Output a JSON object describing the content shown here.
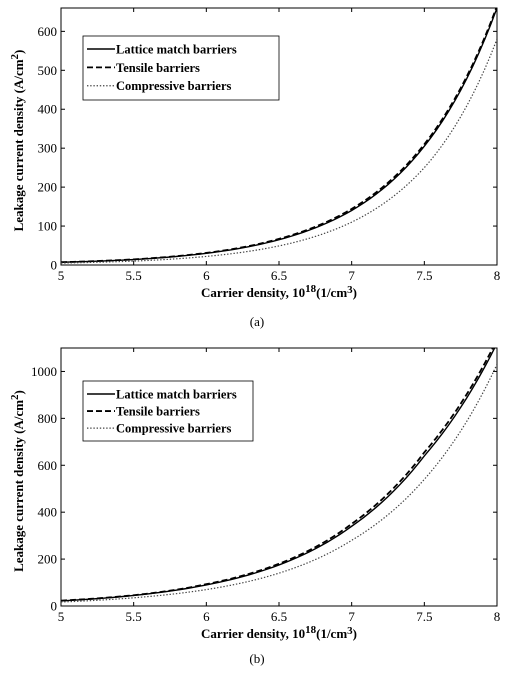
{
  "chart_data": [
    {
      "panel_label": "(a)",
      "type": "line",
      "xlabel": "Carrier density, 10",
      "xlabel_sup": "18",
      "xlabel_tail": "(1/cm",
      "xlabel_sup2": "3",
      "xlabel_end": ")",
      "ylabel": "Leakage current density (A/cm",
      "ylabel_sup": "2",
      "ylabel_end": ")",
      "xlim": [
        5,
        8
      ],
      "ylim": [
        0,
        660
      ],
      "xticks": [
        5,
        5.5,
        6,
        6.5,
        7,
        7.5,
        8
      ],
      "xtick_labels": [
        "5",
        "5.5",
        "6",
        "6.5",
        "7",
        "7.5",
        "8"
      ],
      "yticks": [
        0,
        100,
        200,
        300,
        400,
        500,
        600
      ],
      "ytick_labels": [
        "0",
        "100",
        "200",
        "300",
        "400",
        "500",
        "600"
      ],
      "legend_position": "top-left",
      "series": [
        {
          "name": "Lattice match barriers",
          "style": "solid",
          "x": [
            5,
            5.5,
            6,
            6.5,
            7,
            7.5,
            8
          ],
          "y": [
            7,
            14,
            30,
            65,
            140,
            305,
            660
          ]
        },
        {
          "name": "Tensile barriers",
          "style": "dashed",
          "x": [
            5,
            5.5,
            6,
            6.5,
            7,
            7.5,
            8
          ],
          "y": [
            7.2,
            14.5,
            31,
            67,
            144,
            310,
            665
          ]
        },
        {
          "name": "Compressive barriers",
          "style": "dotted",
          "x": [
            5,
            5.5,
            6,
            6.5,
            7,
            7.5,
            8
          ],
          "y": [
            5,
            10,
            22,
            49,
            110,
            250,
            580
          ]
        }
      ]
    },
    {
      "panel_label": "(b)",
      "type": "line",
      "xlabel": "Carrier density, 10",
      "xlabel_sup": "18",
      "xlabel_tail": "(1/cm",
      "xlabel_sup2": "3",
      "xlabel_end": ")",
      "ylabel": "Leakage current density (A/cm",
      "ylabel_sup": "2",
      "ylabel_end": ")",
      "xlim": [
        5,
        8
      ],
      "ylim": [
        0,
        1100
      ],
      "xticks": [
        5,
        5.5,
        6,
        6.5,
        7,
        7.5,
        8
      ],
      "xtick_labels": [
        "5",
        "5.5",
        "6",
        "6.5",
        "7",
        "7.5",
        "8"
      ],
      "yticks": [
        0,
        200,
        400,
        600,
        800,
        1000
      ],
      "ytick_labels": [
        "0",
        "200",
        "400",
        "600",
        "800",
        "1000"
      ],
      "legend_position": "top-left",
      "series": [
        {
          "name": "Lattice match barriers",
          "style": "solid",
          "x": [
            5,
            5.5,
            6,
            6.5,
            7,
            7.5,
            8
          ],
          "y": [
            22,
            45,
            90,
            175,
            340,
            640,
            1120
          ]
        },
        {
          "name": "Tensile barriers",
          "style": "dashed",
          "x": [
            5,
            5.5,
            6,
            6.5,
            7,
            7.5,
            8
          ],
          "y": [
            23,
            46,
            93,
            180,
            350,
            655,
            1135
          ]
        },
        {
          "name": "Compressive barriers",
          "style": "dotted",
          "x": [
            5,
            5.5,
            6,
            6.5,
            7,
            7.5,
            8
          ],
          "y": [
            17,
            35,
            70,
            140,
            280,
            540,
            1030
          ]
        }
      ]
    }
  ]
}
